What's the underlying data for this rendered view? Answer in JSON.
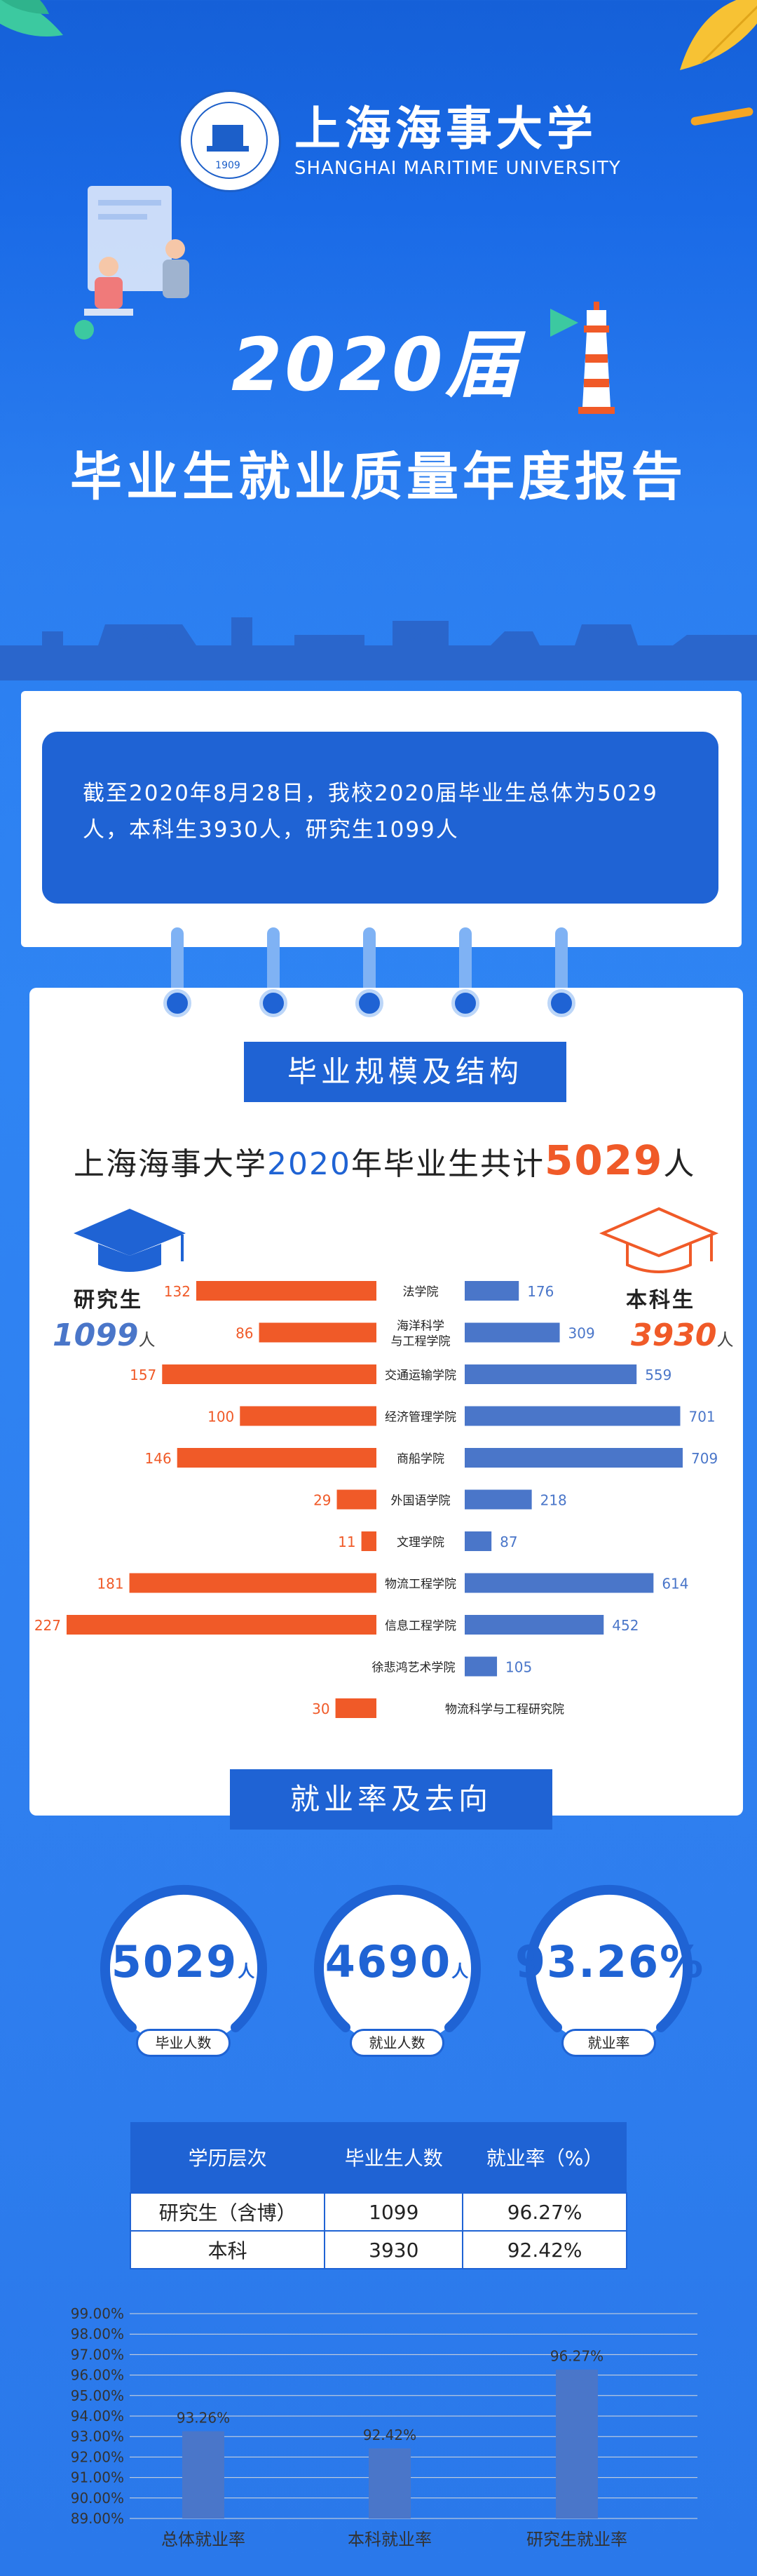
{
  "header": {
    "logo_cn": "上海海事大学",
    "logo_en": "SHANGHAI MARITIME UNIVERSITY",
    "logo_seal_year": "1909",
    "title_year": "2020届",
    "title_sub": "毕业生就业质量年度报告"
  },
  "intro": {
    "text": "截至2020年8月28日，我校2020届毕业生总体为5029人，本科生3930人，研究生1099人"
  },
  "scale": {
    "banner": "毕业规模及结构",
    "headline_pre": "上海海事大学",
    "headline_year": "2020",
    "headline_mid": "年毕业生共计",
    "headline_total": "5029",
    "headline_unit": "人",
    "grad_label": "研究生",
    "grad_total": "1099",
    "undergrad_label": "本科生",
    "undergrad_total": "3930",
    "unit": "人",
    "colors": {
      "grad": "#f05a28",
      "undergrad": "#4a76c9",
      "accent": "#1f63d4"
    }
  },
  "chart_data": [
    {
      "type": "bar",
      "orientation": "horizontal-butterfly",
      "categories": [
        "法学院",
        "海洋科学与工程学院",
        "交通运输学院",
        "经济管理学院",
        "商船学院",
        "外国语学院",
        "文理学院",
        "物流工程学院",
        "信息工程学院",
        "徐悲鸿艺术学院",
        "物流科学与工程研究院"
      ],
      "category_lines": [
        [
          "法学院"
        ],
        [
          "海洋科学",
          "与工程学院"
        ],
        [
          "交通运输学院"
        ],
        [
          "经济管理学院"
        ],
        [
          "商船学院"
        ],
        [
          "外国语学院"
        ],
        [
          "文理学院"
        ],
        [
          "物流工程学院"
        ],
        [
          "信息工程学院"
        ],
        [
          "徐悲鸿艺术学院"
        ],
        [
          "物流科学与工程研究院"
        ]
      ],
      "series": [
        {
          "name": "研究生",
          "values": [
            132,
            86,
            157,
            100,
            146,
            29,
            11,
            181,
            227,
            null,
            30
          ]
        },
        {
          "name": "本科生",
          "values": [
            176,
            309,
            559,
            701,
            709,
            218,
            87,
            614,
            452,
            105,
            null
          ]
        }
      ]
    },
    {
      "type": "bar",
      "categories": [
        "总体就业率",
        "本科就业率",
        "研究生就业率"
      ],
      "values": [
        93.26,
        92.42,
        96.27
      ],
      "value_labels": [
        "93.26%",
        "92.42%",
        "96.27%"
      ],
      "ylim": [
        89.0,
        99.0
      ],
      "yticks": [
        "89.00%",
        "90.00%",
        "91.00%",
        "92.00%",
        "93.00%",
        "94.00%",
        "95.00%",
        "96.00%",
        "97.00%",
        "98.00%",
        "99.00%"
      ],
      "title": "",
      "xlabel": "",
      "ylabel": ""
    }
  ],
  "employment": {
    "banner": "就业率及去向",
    "stats": [
      {
        "value": "5029",
        "unit": "人",
        "label": "毕业人数"
      },
      {
        "value": "4690",
        "unit": "人",
        "label": "就业人数"
      },
      {
        "value": "93.26%",
        "unit": "",
        "label": "就业率"
      }
    ],
    "table": {
      "headers": [
        "学历层次",
        "毕业生人数",
        "就业率（%）"
      ],
      "rows": [
        [
          "研究生（含博）",
          "1099",
          "96.27%"
        ],
        [
          "本科",
          "3930",
          "92.42%"
        ]
      ]
    }
  }
}
